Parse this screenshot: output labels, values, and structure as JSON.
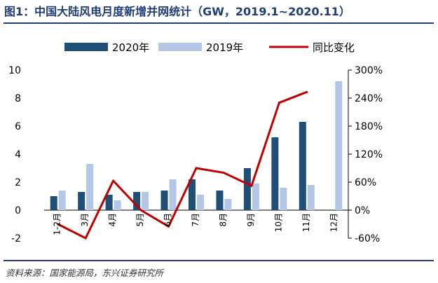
{
  "header": {
    "title": "图1：中国大陆风电月度新增并网统计（GW，2019.1~2020.11）",
    "source": "资料来源：国家能源局，东兴证券研究所"
  },
  "colors": {
    "title": "#1f3d7a",
    "series_2020": "#1f4e79",
    "series_2019": "#b4c7e7",
    "series_yoy": "#c00000"
  },
  "chart_data": {
    "type": "bar",
    "title": "中国大陆风电月度新增并网统计（GW，2019.1~2020.11）",
    "categories": [
      "1-2月",
      "3月",
      "4月",
      "5月",
      "6月",
      "7月",
      "8月",
      "9月",
      "10月",
      "11月",
      "12月"
    ],
    "series": [
      {
        "name": "2020年",
        "type": "bar",
        "axis": "left",
        "values": [
          1.0,
          1.3,
          1.1,
          1.3,
          1.4,
          2.2,
          1.4,
          3.0,
          5.2,
          6.3,
          null
        ]
      },
      {
        "name": "2019年",
        "type": "bar",
        "axis": "left",
        "values": [
          1.4,
          3.3,
          0.7,
          1.3,
          2.2,
          1.1,
          0.8,
          1.9,
          1.6,
          1.8,
          9.2
        ]
      },
      {
        "name": "同比变化",
        "type": "line",
        "axis": "right",
        "values": [
          -30,
          -60,
          63,
          0,
          -35,
          90,
          80,
          52,
          230,
          253,
          null
        ]
      }
    ],
    "y_left": {
      "min": -2,
      "max": 10,
      "ticks": [
        10,
        8,
        6,
        4,
        2,
        0,
        -2
      ]
    },
    "y_right": {
      "min": -60,
      "max": 300,
      "ticks": [
        "300%",
        "240%",
        "180%",
        "120%",
        "60%",
        "0%",
        "-60%"
      ],
      "tick_values": [
        300,
        240,
        180,
        120,
        60,
        0,
        -60
      ]
    },
    "legend": [
      "2020年",
      "2019年",
      "同比变化"
    ],
    "legend_position": "top"
  }
}
